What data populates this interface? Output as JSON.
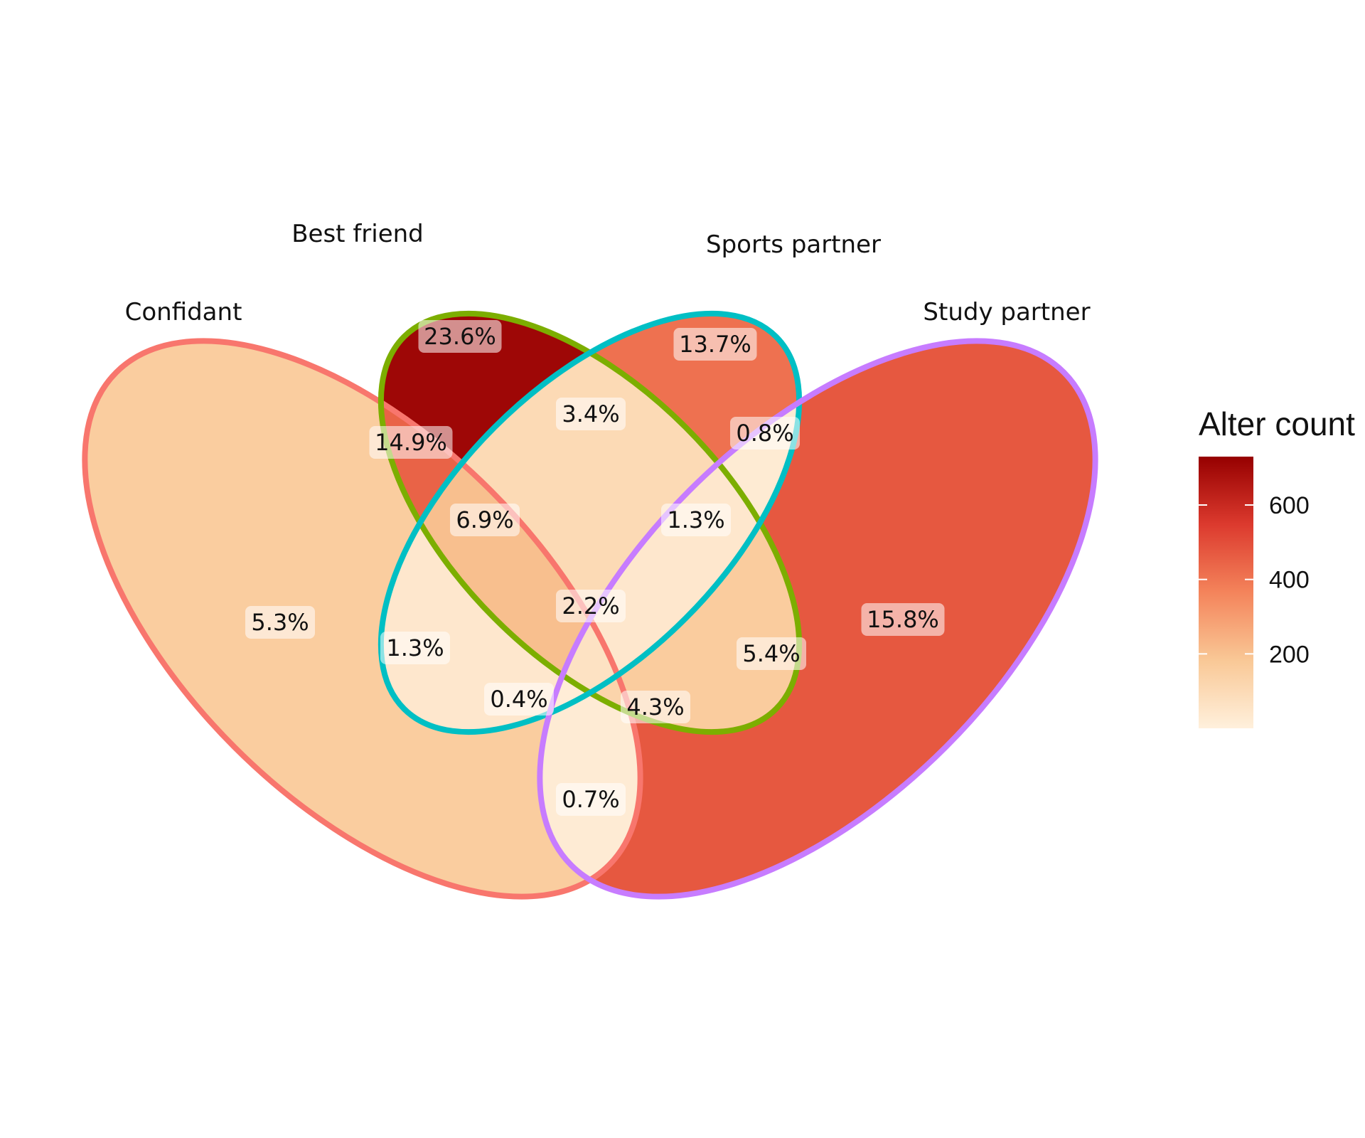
{
  "chart_data": {
    "type": "venn",
    "sets": [
      {
        "name": "Confidant",
        "color": "#F8766D"
      },
      {
        "name": "Best friend",
        "color": "#7CAE00"
      },
      {
        "name": "Sports partner",
        "color": "#00BFC4"
      },
      {
        "name": "Study partner",
        "color": "#C77CFF"
      }
    ],
    "regions": [
      {
        "sets": [
          "Best friend"
        ],
        "label": "23.6%",
        "percent": 23.6
      },
      {
        "sets": [
          "Sports partner"
        ],
        "label": "13.7%",
        "percent": 13.7
      },
      {
        "sets": [
          "Confidant",
          "Best friend"
        ],
        "label": "14.9%",
        "percent": 14.9
      },
      {
        "sets": [
          "Best friend",
          "Sports partner"
        ],
        "label": "3.4%",
        "percent": 3.4
      },
      {
        "sets": [
          "Sports partner",
          "Study partner"
        ],
        "label": "0.8%",
        "percent": 0.8
      },
      {
        "sets": [
          "Confidant",
          "Best friend",
          "Sports partner"
        ],
        "label": "6.9%",
        "percent": 6.9
      },
      {
        "sets": [
          "Best friend",
          "Sports partner",
          "Study partner"
        ],
        "label": "1.3%",
        "percent": 1.3
      },
      {
        "sets": [
          "Confidant",
          "Best friend",
          "Sports partner",
          "Study partner"
        ],
        "label": "2.2%",
        "percent": 2.2
      },
      {
        "sets": [
          "Confidant"
        ],
        "label": "5.3%",
        "percent": 5.3
      },
      {
        "sets": [
          "Confidant",
          "Sports partner"
        ],
        "label": "1.3%",
        "percent": 1.3
      },
      {
        "sets": [
          "Confidant",
          "Sports partner",
          "Study partner"
        ],
        "label": "0.4%",
        "percent": 0.4
      },
      {
        "sets": [
          "Confidant",
          "Best friend",
          "Study partner"
        ],
        "label": "4.3%",
        "percent": 4.3
      },
      {
        "sets": [
          "Best friend",
          "Study partner"
        ],
        "label": "5.4%",
        "percent": 5.4
      },
      {
        "sets": [
          "Study partner"
        ],
        "label": "15.8%",
        "percent": 15.8
      },
      {
        "sets": [
          "Confidant",
          "Study partner"
        ],
        "label": "0.7%",
        "percent": 0.7
      }
    ],
    "legend": {
      "title": "Alter count",
      "ticks": [
        200,
        400,
        600
      ],
      "range": [
        0,
        730
      ],
      "colors": [
        "#FFF0DC",
        "#F9C896",
        "#F4845B",
        "#DC3A2E",
        "#960000"
      ],
      "position": "right"
    }
  }
}
